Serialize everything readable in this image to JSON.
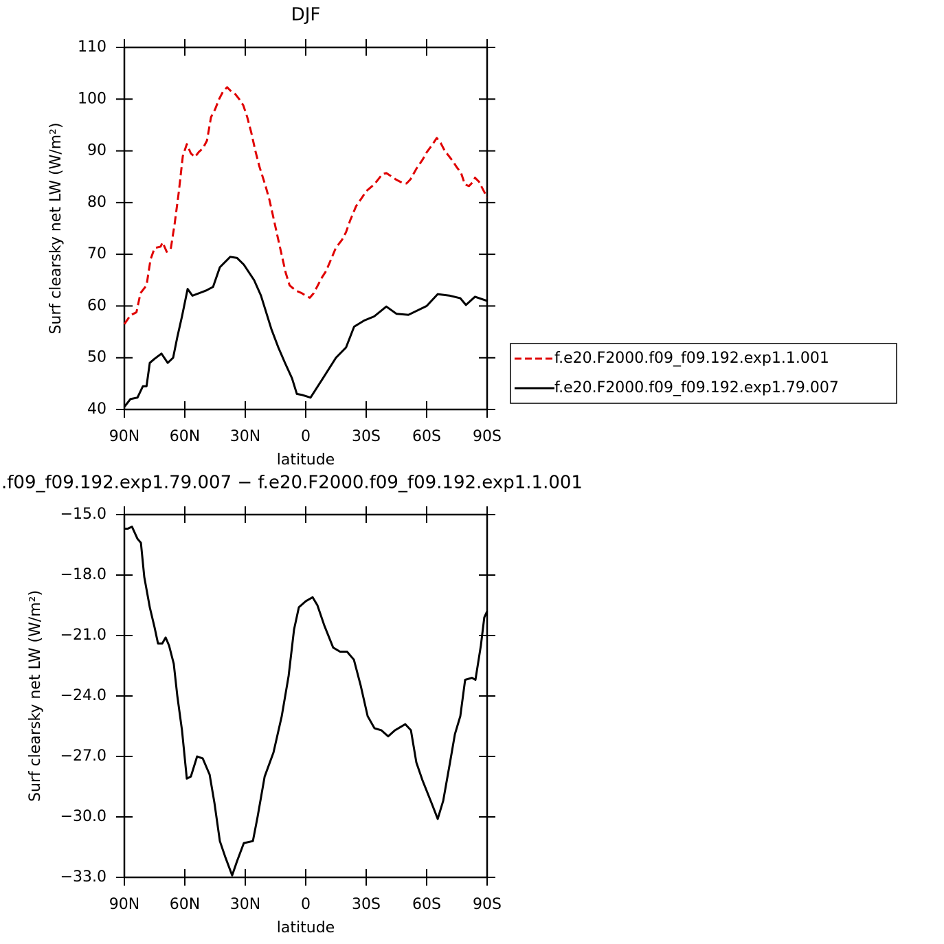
{
  "chart_data": [
    {
      "type": "line",
      "title": "DJF",
      "xlabel": "latitude",
      "ylabel": "Surf clearsky net LW (W/m²)",
      "xlim": [
        90,
        -90
      ],
      "xticks": [
        {
          "value": 90,
          "label": "90N"
        },
        {
          "value": 60,
          "label": "60N"
        },
        {
          "value": 30,
          "label": "30N"
        },
        0,
        {
          "value": -30,
          "label": "30S"
        },
        {
          "value": -60,
          "label": "60S"
        },
        {
          "value": -90,
          "label": "90S"
        }
      ],
      "ylim": [
        40,
        110
      ],
      "yticks": [
        40,
        50,
        60,
        70,
        80,
        90,
        100,
        110
      ],
      "legend": "right",
      "series": [
        {
          "name": "f.e20.F2000.f09_f09.192.exp1.1.001",
          "color": "#e00000",
          "linestyle": "dashed",
          "x": [
            90,
            87,
            84,
            82,
            79,
            77,
            75,
            72,
            71,
            69,
            67,
            65,
            63,
            61,
            59,
            57,
            55,
            53,
            51,
            49,
            47,
            45,
            43,
            41,
            39,
            37,
            35,
            33,
            31,
            29,
            27,
            25,
            23,
            20,
            18,
            16,
            14,
            12,
            10,
            8,
            5,
            2,
            0,
            -2,
            -4,
            -6,
            -8,
            -10,
            -12,
            -15,
            -18,
            -20,
            -22,
            -25,
            -28,
            -30,
            -33,
            -35,
            -38,
            -40,
            -42,
            -45,
            -48,
            -50,
            -52,
            -55,
            -58,
            -60,
            -63,
            -65,
            -67,
            -69,
            -71,
            -73,
            -75,
            -77,
            -79,
            -81,
            -83,
            -84,
            -86,
            -88,
            -90
          ],
          "values": [
            56.5,
            58.2,
            58.8,
            62.5,
            64,
            69,
            71.2,
            71.5,
            72.3,
            70.5,
            71,
            76,
            82,
            89,
            91.3,
            89.5,
            88.8,
            89.8,
            90.5,
            92,
            96.5,
            98,
            100,
            101.5,
            102.3,
            101.5,
            101,
            100,
            98.8,
            96.5,
            93.5,
            90,
            87,
            83.3,
            80.5,
            77,
            73.5,
            70,
            66.5,
            64,
            63,
            62.5,
            62,
            61.6,
            62.5,
            64,
            65.5,
            66.7,
            68.5,
            71.3,
            72.8,
            74.3,
            76.5,
            79.3,
            81,
            82.2,
            83.2,
            84,
            85.5,
            85.7,
            85.2,
            84.4,
            83.8,
            83.7,
            84.5,
            86.6,
            88.3,
            89.7,
            91.3,
            92.5,
            91.5,
            90,
            89,
            88,
            86.8,
            85.8,
            83.5,
            83.2,
            84,
            84.8,
            84,
            82.5,
            81
          ]
        },
        {
          "name": "f.e20.F2000.f09_f09.192.exp1.79.007",
          "color": "#000000",
          "linestyle": "solid",
          "x": [
            90,
            87,
            83.5,
            80.8,
            79,
            77.4,
            75,
            71.6,
            68.5,
            65.8,
            63.7,
            61.4,
            58.6,
            56.2,
            52.8,
            49.4,
            46,
            42.6,
            37.5,
            34.1,
            30.7,
            25.6,
            22.2,
            17,
            13.6,
            10.3,
            6.8,
            4.4,
            1.7,
            -2.4,
            -8.5,
            -15,
            -20,
            -24,
            -29,
            -34,
            -40,
            -45,
            -51,
            -60,
            -65.5,
            -71.6,
            -76.7,
            -79.5,
            -84,
            -90
          ],
          "values": [
            40.5,
            42,
            42.3,
            44.5,
            44.5,
            49,
            49.8,
            50.8,
            49,
            50,
            54,
            58,
            63.3,
            62,
            62.5,
            63,
            63.7,
            67.5,
            69.5,
            69.3,
            68,
            65,
            62,
            55.5,
            52,
            49,
            46,
            43,
            42.8,
            42.3,
            46,
            50,
            52,
            56,
            57.2,
            58,
            59.9,
            58.5,
            58.3,
            60,
            62.3,
            62,
            61.5,
            60.2,
            61.8,
            61
          ]
        }
      ]
    },
    {
      "type": "line",
      "title": ".f09_f09.192.exp1.79.007 − f.e20.F2000.f09_f09.192.exp1.1.001",
      "xlabel": "latitude",
      "ylabel": "Surf clearsky net LW (W/m²)",
      "xlim": [
        90,
        -90
      ],
      "xticks": [
        {
          "value": 90,
          "label": "90N"
        },
        {
          "value": 60,
          "label": "60N"
        },
        {
          "value": 30,
          "label": "30N"
        },
        0,
        {
          "value": -30,
          "label": "30S"
        },
        {
          "value": -60,
          "label": "60S"
        },
        {
          "value": -90,
          "label": "90S"
        }
      ],
      "ylim": [
        -33,
        -15
      ],
      "yticks": [
        {
          "value": -33,
          "label": "−33.0"
        },
        {
          "value": -30,
          "label": "−30.0"
        },
        {
          "value": -27,
          "label": "−27.0"
        },
        {
          "value": -24,
          "label": "−24.0"
        },
        {
          "value": -21,
          "label": "−21.0"
        },
        {
          "value": -18,
          "label": "−18.0"
        },
        {
          "value": -15,
          "label": "−15.0"
        }
      ],
      "color": "#000000",
      "x": [
        90,
        88.3,
        86.2,
        83.5,
        81.8,
        80.1,
        77.4,
        75,
        73.3,
        71.2,
        69.5,
        67.8,
        65.5,
        63.7,
        61.4,
        59,
        57,
        53.9,
        51.1,
        47.7,
        45.3,
        42.6,
        39.9,
        36.5,
        34.1,
        30.7,
        26.2,
        23.9,
        20.4,
        16,
        11.9,
        8.5,
        5.8,
        3.4,
        0,
        -3.4,
        -5.8,
        -9.2,
        -13.6,
        -17,
        -20.5,
        -23.9,
        -27.3,
        -30.7,
        -34.1,
        -37.5,
        -40.9,
        -44.3,
        -49.4,
        -52.2,
        -54.9,
        -58,
        -62.4,
        -65.5,
        -68.2,
        -71.6,
        -74,
        -76.7,
        -79.1,
        -82.5,
        -84.2,
        -86.9,
        -88.6,
        -90
      ],
      "values": [
        -15.7,
        -15.7,
        -15.6,
        -16.2,
        -16.4,
        -18.1,
        -19.6,
        -20.6,
        -21.4,
        -21.4,
        -21.1,
        -21.5,
        -22.4,
        -24,
        -25.7,
        -28.1,
        -28,
        -27,
        -27.1,
        -27.9,
        -29.3,
        -31.2,
        -32,
        -32.9,
        -32.2,
        -31.3,
        -31.2,
        -30,
        -28,
        -26.8,
        -25,
        -23,
        -20.7,
        -19.6,
        -19.3,
        -19.1,
        -19.5,
        -20.5,
        -21.6,
        -21.8,
        -21.8,
        -22.2,
        -23.5,
        -25,
        -25.6,
        -25.7,
        -26,
        -25.7,
        -25.4,
        -25.7,
        -27.3,
        -28.2,
        -29.3,
        -30.1,
        -29.2,
        -27.3,
        -25.9,
        -25,
        -23.2,
        -23.1,
        -23.2,
        -21.5,
        -20.1,
        -19.8
      ]
    }
  ]
}
